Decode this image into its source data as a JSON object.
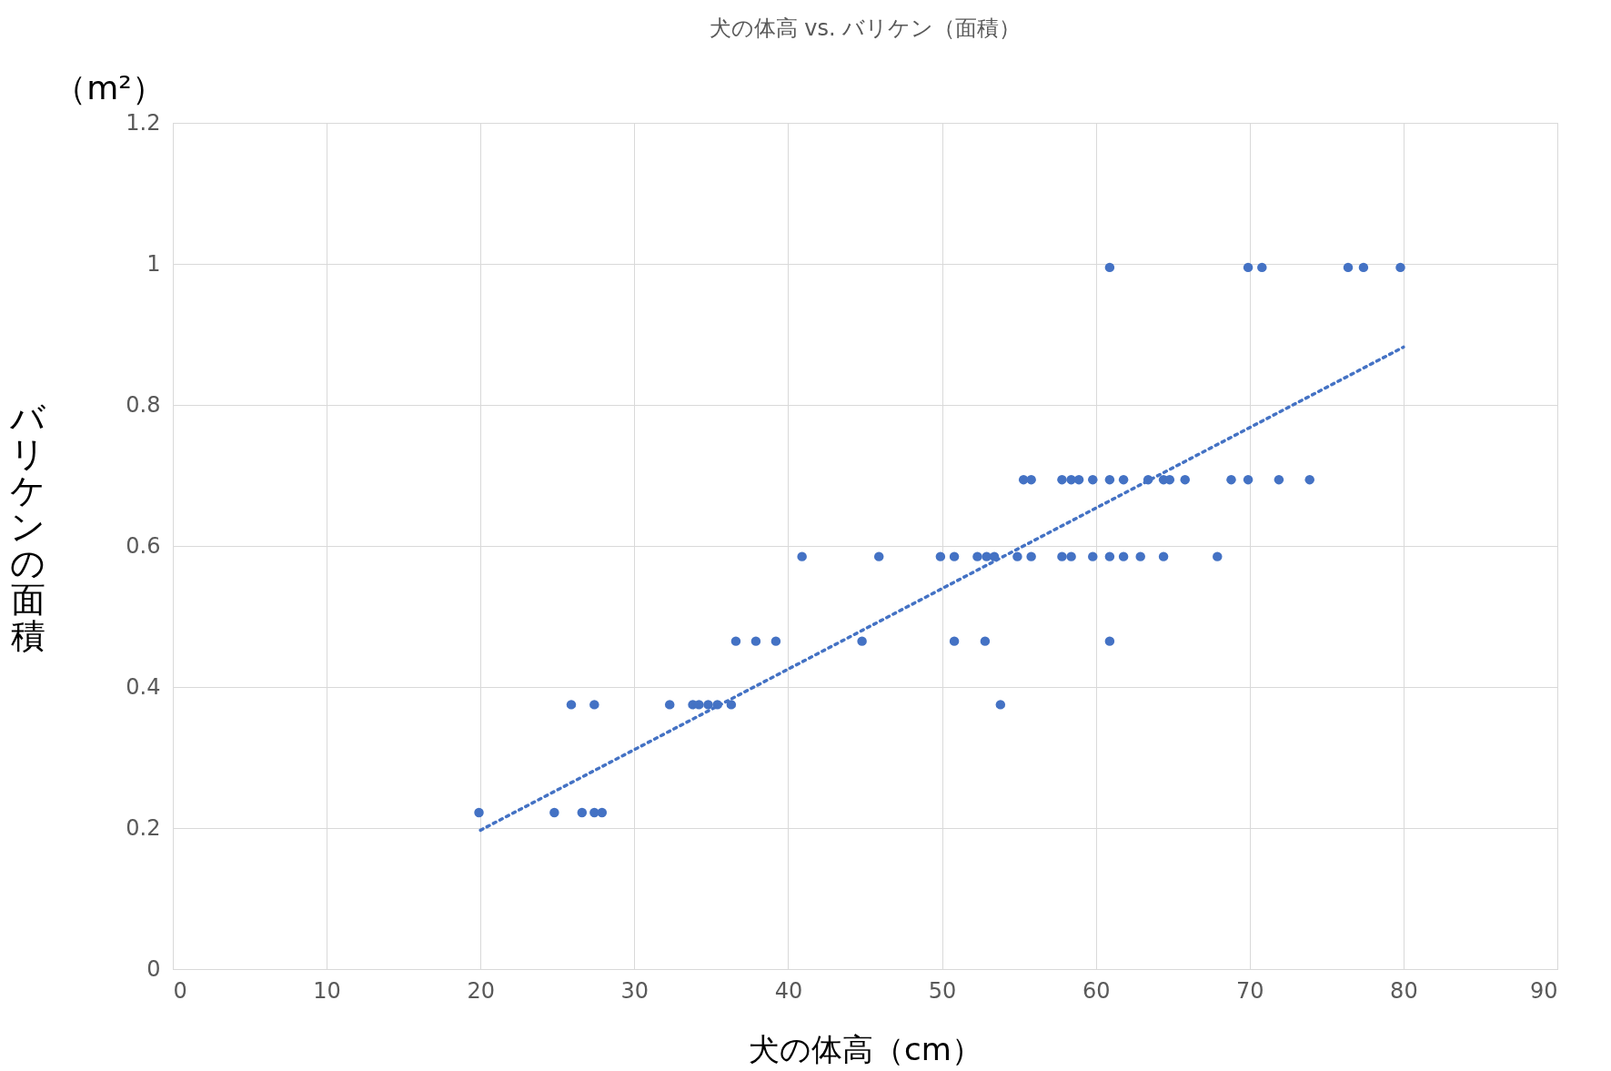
{
  "chart_data": {
    "type": "scatter",
    "title": "犬の体高 vs. バリケン（面積）",
    "xlabel": "犬の体高（cm）",
    "ylabel": "バリケンの面積",
    "annotations": [
      "（m²）"
    ],
    "xlim": [
      0,
      90
    ],
    "xticks": [
      0,
      10,
      20,
      30,
      40,
      50,
      60,
      70,
      80,
      90
    ],
    "ylim": [
      0,
      1.2
    ],
    "yticks": [
      0,
      0.2,
      0.4,
      0.6,
      0.8,
      1,
      1.2
    ],
    "grid": true,
    "series": [
      {
        "color": "#4472c4",
        "marker": "circle",
        "x": [
          19.9,
          24.8,
          26.6,
          27.4,
          27.9,
          25.9,
          27.4,
          32.3,
          33.8,
          34.2,
          34.8,
          35.4,
          36.3,
          53.8,
          36.6,
          37.9,
          39.2,
          44.8,
          50.8,
          52.8,
          60.9,
          40.9,
          45.9,
          49.9,
          50.8,
          52.3,
          52.9,
          53.4,
          54.9,
          55.8,
          57.8,
          58.4,
          59.8,
          60.9,
          61.8,
          62.9,
          64.4,
          67.9,
          55.3,
          55.8,
          57.8,
          58.4,
          58.9,
          59.8,
          60.9,
          61.8,
          63.4,
          64.4,
          64.8,
          65.8,
          68.8,
          69.9,
          71.9,
          73.9,
          60.9,
          69.9,
          70.8,
          76.4,
          77.4,
          79.8
        ],
        "values": [
          0.222,
          0.222,
          0.222,
          0.222,
          0.222,
          0.375,
          0.375,
          0.375,
          0.375,
          0.375,
          0.375,
          0.375,
          0.375,
          0.375,
          0.465,
          0.465,
          0.465,
          0.465,
          0.465,
          0.465,
          0.465,
          0.585,
          0.585,
          0.585,
          0.585,
          0.585,
          0.585,
          0.585,
          0.585,
          0.585,
          0.585,
          0.585,
          0.585,
          0.585,
          0.585,
          0.585,
          0.585,
          0.585,
          0.694,
          0.694,
          0.694,
          0.694,
          0.694,
          0.694,
          0.694,
          0.694,
          0.694,
          0.694,
          0.694,
          0.694,
          0.694,
          0.694,
          0.694,
          0.694,
          0.995,
          0.995,
          0.995,
          0.995,
          0.995,
          0.995
        ]
      },
      {
        "type": "line",
        "color": "#4472c4",
        "line_style": "dotted",
        "marker": "none",
        "x": [
          20,
          80
        ],
        "values": [
          0.197,
          0.882
        ]
      }
    ]
  }
}
